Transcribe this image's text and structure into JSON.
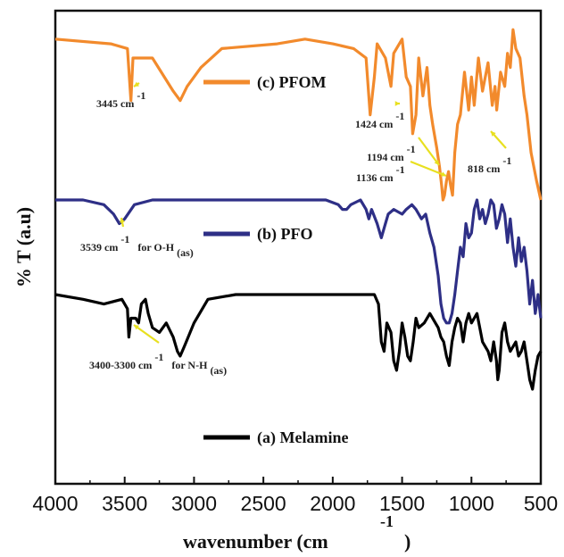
{
  "chart_data": {
    "type": "line",
    "xlabel": "wavenumber (cm",
    "xlabel_sup": "-1",
    "xlabel_close": ")",
    "ylabel": "% T (a.u)",
    "xlim": [
      4000,
      500
    ],
    "x_ticks": [
      "4000",
      "3500",
      "3000",
      "2500",
      "2000",
      "1500",
      "1000",
      "500"
    ],
    "legend_placement": "inline",
    "series": [
      {
        "name": "(c) PFOM",
        "color": "#f28a2c",
        "points": [
          [
            4000,
            0.06
          ],
          [
            3600,
            0.07
          ],
          [
            3480,
            0.08
          ],
          [
            3455,
            0.19
          ],
          [
            3440,
            0.1
          ],
          [
            3300,
            0.1
          ],
          [
            3150,
            0.17
          ],
          [
            3100,
            0.19
          ],
          [
            3050,
            0.16
          ],
          [
            2950,
            0.12
          ],
          [
            2800,
            0.08
          ],
          [
            2400,
            0.07
          ],
          [
            2200,
            0.06
          ],
          [
            2000,
            0.07
          ],
          [
            1850,
            0.08
          ],
          [
            1760,
            0.1
          ],
          [
            1730,
            0.22
          ],
          [
            1700,
            0.14
          ],
          [
            1680,
            0.07
          ],
          [
            1620,
            0.1
          ],
          [
            1580,
            0.16
          ],
          [
            1560,
            0.09
          ],
          [
            1500,
            0.06
          ],
          [
            1470,
            0.14
          ],
          [
            1440,
            0.16
          ],
          [
            1424,
            0.26
          ],
          [
            1400,
            0.22
          ],
          [
            1380,
            0.1
          ],
          [
            1350,
            0.18
          ],
          [
            1320,
            0.12
          ],
          [
            1300,
            0.2
          ],
          [
            1280,
            0.24
          ],
          [
            1250,
            0.29
          ],
          [
            1230,
            0.33
          ],
          [
            1215,
            0.37
          ],
          [
            1205,
            0.4
          ],
          [
            1194,
            0.39
          ],
          [
            1180,
            0.36
          ],
          [
            1165,
            0.34
          ],
          [
            1150,
            0.37
          ],
          [
            1136,
            0.39
          ],
          [
            1120,
            0.3
          ],
          [
            1100,
            0.24
          ],
          [
            1080,
            0.22
          ],
          [
            1050,
            0.13
          ],
          [
            1020,
            0.21
          ],
          [
            1000,
            0.14
          ],
          [
            980,
            0.2
          ],
          [
            950,
            0.1
          ],
          [
            920,
            0.17
          ],
          [
            880,
            0.11
          ],
          [
            850,
            0.2
          ],
          [
            830,
            0.16
          ],
          [
            818,
            0.21
          ],
          [
            790,
            0.13
          ],
          [
            760,
            0.16
          ],
          [
            740,
            0.09
          ],
          [
            720,
            0.12
          ],
          [
            700,
            0.04
          ],
          [
            680,
            0.08
          ],
          [
            650,
            0.1
          ],
          [
            620,
            0.18
          ],
          [
            600,
            0.22
          ],
          [
            570,
            0.3
          ],
          [
            550,
            0.33
          ],
          [
            530,
            0.36
          ],
          [
            500,
            0.4
          ]
        ]
      },
      {
        "name": "(b) PFO",
        "color": "#2e2f86",
        "points": [
          [
            4000,
            0.4
          ],
          [
            3800,
            0.4
          ],
          [
            3650,
            0.41
          ],
          [
            3580,
            0.43
          ],
          [
            3539,
            0.45
          ],
          [
            3500,
            0.44
          ],
          [
            3430,
            0.41
          ],
          [
            3300,
            0.4
          ],
          [
            3000,
            0.4
          ],
          [
            2600,
            0.4
          ],
          [
            2300,
            0.4
          ],
          [
            2050,
            0.4
          ],
          [
            1960,
            0.41
          ],
          [
            1930,
            0.42
          ],
          [
            1900,
            0.42
          ],
          [
            1870,
            0.41
          ],
          [
            1800,
            0.4
          ],
          [
            1760,
            0.42
          ],
          [
            1740,
            0.44
          ],
          [
            1720,
            0.42
          ],
          [
            1680,
            0.45
          ],
          [
            1650,
            0.48
          ],
          [
            1620,
            0.45
          ],
          [
            1600,
            0.43
          ],
          [
            1560,
            0.42
          ],
          [
            1500,
            0.43
          ],
          [
            1470,
            0.42
          ],
          [
            1430,
            0.41
          ],
          [
            1400,
            0.42
          ],
          [
            1360,
            0.44
          ],
          [
            1330,
            0.43
          ],
          [
            1300,
            0.47
          ],
          [
            1270,
            0.5
          ],
          [
            1240,
            0.56
          ],
          [
            1220,
            0.62
          ],
          [
            1200,
            0.65
          ],
          [
            1180,
            0.66
          ],
          [
            1160,
            0.66
          ],
          [
            1140,
            0.64
          ],
          [
            1120,
            0.6
          ],
          [
            1100,
            0.55
          ],
          [
            1080,
            0.5
          ],
          [
            1060,
            0.52
          ],
          [
            1040,
            0.45
          ],
          [
            1020,
            0.48
          ],
          [
            1000,
            0.47
          ],
          [
            980,
            0.42
          ],
          [
            960,
            0.4
          ],
          [
            940,
            0.44
          ],
          [
            920,
            0.42
          ],
          [
            900,
            0.45
          ],
          [
            880,
            0.43
          ],
          [
            860,
            0.4
          ],
          [
            840,
            0.41
          ],
          [
            820,
            0.46
          ],
          [
            800,
            0.44
          ],
          [
            780,
            0.41
          ],
          [
            760,
            0.43
          ],
          [
            740,
            0.49
          ],
          [
            720,
            0.44
          ],
          [
            700,
            0.5
          ],
          [
            680,
            0.54
          ],
          [
            660,
            0.48
          ],
          [
            640,
            0.53
          ],
          [
            620,
            0.5
          ],
          [
            600,
            0.55
          ],
          [
            580,
            0.62
          ],
          [
            560,
            0.57
          ],
          [
            540,
            0.64
          ],
          [
            520,
            0.6
          ],
          [
            500,
            0.65
          ]
        ]
      },
      {
        "name": "(a) Melamine",
        "color": "#000000",
        "points": [
          [
            4000,
            0.6
          ],
          [
            3800,
            0.61
          ],
          [
            3650,
            0.62
          ],
          [
            3520,
            0.61
          ],
          [
            3480,
            0.63
          ],
          [
            3470,
            0.69
          ],
          [
            3455,
            0.65
          ],
          [
            3420,
            0.65
          ],
          [
            3400,
            0.66
          ],
          [
            3380,
            0.62
          ],
          [
            3350,
            0.61
          ],
          [
            3330,
            0.64
          ],
          [
            3300,
            0.67
          ],
          [
            3250,
            0.68
          ],
          [
            3200,
            0.66
          ],
          [
            3150,
            0.69
          ],
          [
            3120,
            0.72
          ],
          [
            3100,
            0.73
          ],
          [
            3070,
            0.71
          ],
          [
            3000,
            0.66
          ],
          [
            2900,
            0.61
          ],
          [
            2700,
            0.6
          ],
          [
            2500,
            0.6
          ],
          [
            2200,
            0.6
          ],
          [
            1900,
            0.6
          ],
          [
            1700,
            0.6
          ],
          [
            1670,
            0.62
          ],
          [
            1650,
            0.7
          ],
          [
            1630,
            0.72
          ],
          [
            1610,
            0.66
          ],
          [
            1580,
            0.68
          ],
          [
            1560,
            0.74
          ],
          [
            1540,
            0.76
          ],
          [
            1520,
            0.72
          ],
          [
            1500,
            0.66
          ],
          [
            1480,
            0.69
          ],
          [
            1460,
            0.73
          ],
          [
            1440,
            0.74
          ],
          [
            1420,
            0.7
          ],
          [
            1400,
            0.65
          ],
          [
            1380,
            0.67
          ],
          [
            1340,
            0.66
          ],
          [
            1300,
            0.64
          ],
          [
            1260,
            0.66
          ],
          [
            1240,
            0.67
          ],
          [
            1220,
            0.69
          ],
          [
            1200,
            0.7
          ],
          [
            1180,
            0.73
          ],
          [
            1160,
            0.75
          ],
          [
            1140,
            0.7
          ],
          [
            1120,
            0.67
          ],
          [
            1100,
            0.65
          ],
          [
            1080,
            0.66
          ],
          [
            1060,
            0.7
          ],
          [
            1040,
            0.66
          ],
          [
            1020,
            0.64
          ],
          [
            1000,
            0.66
          ],
          [
            980,
            0.65
          ],
          [
            960,
            0.64
          ],
          [
            940,
            0.67
          ],
          [
            920,
            0.7
          ],
          [
            900,
            0.71
          ],
          [
            880,
            0.72
          ],
          [
            860,
            0.74
          ],
          [
            840,
            0.7
          ],
          [
            820,
            0.74
          ],
          [
            810,
            0.78
          ],
          [
            800,
            0.76
          ],
          [
            780,
            0.68
          ],
          [
            760,
            0.66
          ],
          [
            740,
            0.7
          ],
          [
            720,
            0.72
          ],
          [
            700,
            0.71
          ],
          [
            680,
            0.7
          ],
          [
            660,
            0.73
          ],
          [
            640,
            0.72
          ],
          [
            620,
            0.7
          ],
          [
            600,
            0.74
          ],
          [
            580,
            0.78
          ],
          [
            560,
            0.8
          ],
          [
            540,
            0.76
          ],
          [
            520,
            0.73
          ],
          [
            500,
            0.72
          ]
        ]
      }
    ],
    "annotations": [
      {
        "text": "3445 cm",
        "sup": "-1"
      },
      {
        "text": "1424 cm",
        "sup": "-1"
      },
      {
        "text": "1194 cm",
        "sup": "-1"
      },
      {
        "text": "1136 cm",
        "sup": "-1"
      },
      {
        "text": "818 cm",
        "sup": "-1"
      },
      {
        "text": "3539 cm",
        "sup": "-1",
        "suffix": " for O-H",
        "sub": "(as)"
      },
      {
        "text": "3400-3300 cm",
        "sup": "-1",
        "suffix": " for N-H",
        "sub": "(as)"
      }
    ]
  }
}
